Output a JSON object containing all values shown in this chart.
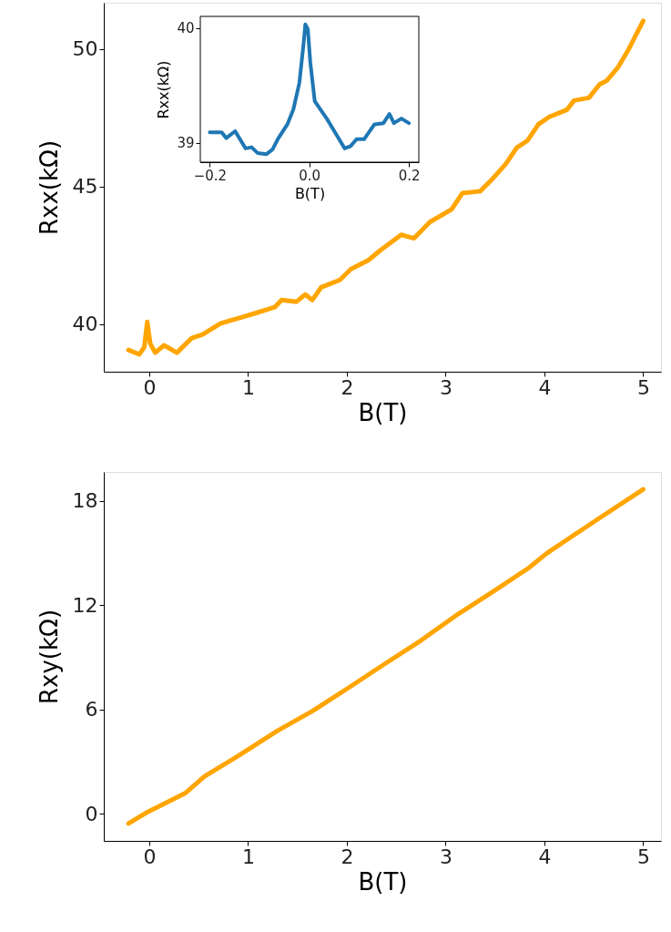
{
  "chart_data": [
    {
      "type": "line",
      "xlabel": "B(T)",
      "ylabel": "Rxx(kΩ)",
      "xlim": [
        -0.46,
        5.18
      ],
      "ylim": [
        38.28,
        51.67
      ],
      "xticks": [
        0,
        1,
        2,
        3,
        4,
        5
      ],
      "yticks": [
        40,
        45,
        50
      ],
      "x": [
        -0.21,
        -0.1,
        -0.05,
        -0.02,
        0.01,
        0.06,
        0.15,
        0.28,
        0.43,
        0.54,
        0.72,
        0.9,
        1.09,
        1.27,
        1.34,
        1.49,
        1.58,
        1.65,
        1.74,
        1.93,
        2.04,
        2.22,
        2.33,
        2.55,
        2.68,
        2.84,
        3.06,
        3.17,
        3.35,
        3.46,
        3.61,
        3.72,
        3.83,
        3.94,
        4.05,
        4.23,
        4.3,
        4.45,
        4.56,
        4.63,
        4.74,
        4.85,
        5.0
      ],
      "series": [
        {
          "color": "#ffa500",
          "values": [
            39.07,
            38.91,
            39.17,
            40.09,
            39.3,
            38.97,
            39.24,
            38.97,
            39.5,
            39.63,
            40.03,
            40.22,
            40.42,
            40.62,
            40.88,
            40.82,
            41.08,
            40.88,
            41.34,
            41.61,
            42.0,
            42.33,
            42.66,
            43.25,
            43.12,
            43.71,
            44.17,
            44.76,
            44.83,
            45.22,
            45.82,
            46.41,
            46.67,
            47.26,
            47.53,
            47.79,
            48.12,
            48.22,
            48.71,
            48.84,
            49.3,
            49.96,
            51.01
          ]
        }
      ]
    },
    {
      "type": "line",
      "xlabel": "B(T)",
      "ylabel": "Rxx(kΩ)",
      "xlim": [
        -0.219,
        0.22
      ],
      "ylim": [
        38.83,
        40.1
      ],
      "xticks": [
        {
          "value": -0.2,
          "label": "−0.2"
        },
        {
          "value": 0,
          "label": "0.0"
        },
        0.2
      ],
      "yticks": [
        39,
        40
      ],
      "x": [
        -0.2,
        -0.176,
        -0.167,
        -0.149,
        -0.128,
        -0.116,
        -0.104,
        -0.086,
        -0.074,
        -0.062,
        -0.044,
        -0.032,
        -0.02,
        -0.012,
        -0.008,
        -0.003,
        0.002,
        0.011,
        0.035,
        0.053,
        0.071,
        0.083,
        0.095,
        0.11,
        0.131,
        0.149,
        0.161,
        0.17,
        0.185,
        0.2
      ],
      "series": [
        {
          "color": "#1f77b4",
          "values": [
            39.09,
            39.09,
            39.04,
            39.1,
            38.95,
            38.96,
            38.91,
            38.9,
            38.94,
            39.04,
            39.16,
            39.29,
            39.52,
            39.84,
            40.03,
            39.99,
            39.7,
            39.36,
            39.21,
            39.08,
            38.95,
            38.97,
            39.03,
            39.03,
            39.16,
            39.17,
            39.25,
            39.17,
            39.21,
            39.17
          ]
        }
      ]
    },
    {
      "type": "line",
      "xlabel": "B(T)",
      "ylabel": "Rxy(kΩ)",
      "xlim": [
        -0.46,
        5.18
      ],
      "ylim": [
        -1.56,
        19.67
      ],
      "xticks": [
        0,
        1,
        2,
        3,
        4,
        5
      ],
      "yticks": [
        0,
        6,
        12,
        18
      ],
      "x": [
        -0.21,
        -0.03,
        0.15,
        0.37,
        0.56,
        0.92,
        1.29,
        1.65,
        2.02,
        2.38,
        2.75,
        3.11,
        3.48,
        3.84,
        4.02,
        4.21,
        4.57,
        5.0
      ],
      "series": [
        {
          "color": "#ffa500",
          "values": [
            -0.56,
            0.06,
            0.58,
            1.21,
            2.15,
            3.4,
            4.75,
            5.9,
            7.26,
            8.61,
            9.97,
            11.43,
            12.78,
            14.14,
            14.97,
            15.7,
            17.06,
            18.67
          ]
        }
      ]
    }
  ]
}
